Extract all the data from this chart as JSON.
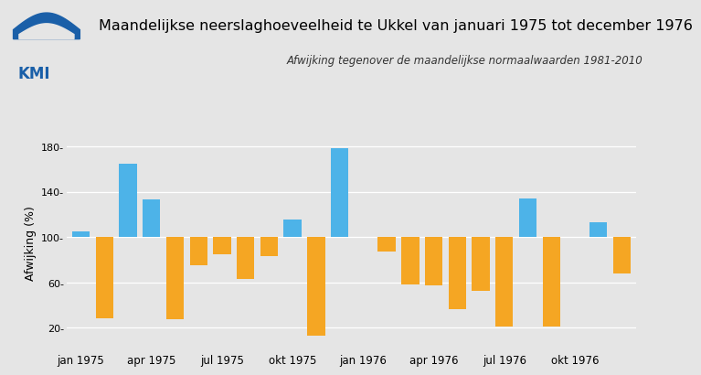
{
  "title": "Maandelijkse neerslaghoeveelheid te Ukkel van januari 1975 tot december 1976",
  "subtitle": "Afwijking tegenover de maandelijkse normaalwaarden 1981-2010",
  "ylabel": "Afwijking (%)",
  "background_color": "#e5e5e5",
  "plot_bg_color": "#e5e5e5",
  "blue_color": "#4db3e8",
  "orange_color": "#f5a623",
  "values": [
    105,
    28,
    165,
    133,
    27,
    75,
    85,
    63,
    83,
    115,
    13,
    178,
    100,
    87,
    58,
    57,
    36,
    52,
    21,
    134,
    21,
    100,
    113,
    68
  ],
  "colors": [
    "blue",
    "orange",
    "blue",
    "blue",
    "orange",
    "orange",
    "orange",
    "orange",
    "orange",
    "blue",
    "orange",
    "blue",
    "orange",
    "orange",
    "orange",
    "orange",
    "orange",
    "orange",
    "orange",
    "blue",
    "orange",
    "orange",
    "blue",
    "orange"
  ],
  "xtick_labels": [
    "jan 1975",
    "apr 1975",
    "jul 1975",
    "okt 1975",
    "jan 1976",
    "apr 1976",
    "jul 1976",
    "okt 1976"
  ],
  "xtick_positions": [
    0,
    3,
    6,
    9,
    12,
    15,
    18,
    21
  ],
  "ylim_bottom": 0,
  "ylim_top": 190,
  "yticks": [
    20,
    60,
    100,
    140,
    180
  ],
  "title_fontsize": 11.5,
  "subtitle_fontsize": 8.5,
  "ylabel_fontsize": 9
}
